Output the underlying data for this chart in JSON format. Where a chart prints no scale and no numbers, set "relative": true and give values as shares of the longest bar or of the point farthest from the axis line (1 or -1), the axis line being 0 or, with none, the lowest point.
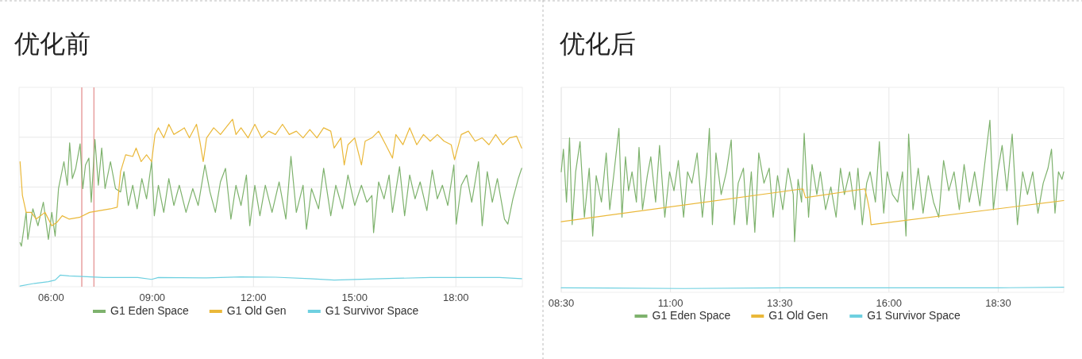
{
  "chart_data": [
    {
      "type": "line",
      "title": "优化前",
      "relative": true,
      "xlim": [
        5.05,
        19.97
      ],
      "xticks": [
        {
          "value": 6,
          "label": "06:00"
        },
        {
          "value": 9,
          "label": "09:00"
        },
        {
          "value": 12,
          "label": "12:00"
        },
        {
          "value": 15,
          "label": "15:00"
        },
        {
          "value": 18,
          "label": "18:00"
        }
      ],
      "grid": true,
      "legend": "bottom",
      "ref_lines": [
        {
          "axis": "x",
          "value": 6.91,
          "color": "#e8a0a0"
        },
        {
          "axis": "x",
          "value": 7.27,
          "color": "#e8a0a0"
        }
      ],
      "series": [
        {
          "name": "G1 Eden Space",
          "color": "#7eb26d",
          "x": [
            5.08,
            5.12,
            5.26,
            5.31,
            5.46,
            5.61,
            5.77,
            5.92,
            6.02,
            6.12,
            6.22,
            6.38,
            6.48,
            6.55,
            6.63,
            6.73,
            6.86,
            6.94,
            7.02,
            7.12,
            7.19,
            7.3,
            7.4,
            7.5,
            7.6,
            7.76,
            7.91,
            8.06,
            8.16,
            8.29,
            8.42,
            8.55,
            8.69,
            8.83,
            8.98,
            9.06,
            9.18,
            9.34,
            9.49,
            9.64,
            9.8,
            10.0,
            10.2,
            10.36,
            10.56,
            10.71,
            10.87,
            11.02,
            11.17,
            11.33,
            11.48,
            11.63,
            11.79,
            11.89,
            12.04,
            12.19,
            12.35,
            12.55,
            12.76,
            12.96,
            13.11,
            13.27,
            13.47,
            13.57,
            13.72,
            13.93,
            14.08,
            14.29,
            14.44,
            14.64,
            14.8,
            15.0,
            15.2,
            15.36,
            15.51,
            15.56,
            15.71,
            15.87,
            16.02,
            16.12,
            16.33,
            16.48,
            16.63,
            16.79,
            16.94,
            17.14,
            17.3,
            17.45,
            17.6,
            17.76,
            17.94,
            18.01,
            18.16,
            18.32,
            18.47,
            18.67,
            18.78,
            18.93,
            19.08,
            19.23,
            19.44,
            19.54,
            19.69,
            19.85,
            19.95
          ],
          "values": [
            0.263,
            0.242,
            0.444,
            0.283,
            0.465,
            0.364,
            0.505,
            0.283,
            0.444,
            0.303,
            0.586,
            0.747,
            0.606,
            0.859,
            0.646,
            0.707,
            0.853,
            0.586,
            0.727,
            0.768,
            0.505,
            0.879,
            0.606,
            0.828,
            0.586,
            0.747,
            0.586,
            0.566,
            0.687,
            0.485,
            0.606,
            0.465,
            0.646,
            0.525,
            0.747,
            0.424,
            0.606,
            0.444,
            0.646,
            0.485,
            0.606,
            0.444,
            0.586,
            0.485,
            0.727,
            0.566,
            0.444,
            0.626,
            0.707,
            0.404,
            0.606,
            0.485,
            0.667,
            0.364,
            0.606,
            0.424,
            0.606,
            0.444,
            0.626,
            0.404,
            0.778,
            0.444,
            0.606,
            0.343,
            0.586,
            0.465,
            0.707,
            0.424,
            0.606,
            0.465,
            0.667,
            0.485,
            0.606,
            0.505,
            0.545,
            0.323,
            0.626,
            0.525,
            0.667,
            0.444,
            0.717,
            0.424,
            0.667,
            0.525,
            0.626,
            0.455,
            0.697,
            0.525,
            0.606,
            0.485,
            0.727,
            0.374,
            0.606,
            0.667,
            0.505,
            0.747,
            0.364,
            0.687,
            0.505,
            0.646,
            0.404,
            0.374,
            0.525,
            0.646,
            0.707
          ]
        },
        {
          "name": "G1 Old Gen",
          "color": "#eab839",
          "x": [
            5.08,
            5.15,
            5.26,
            5.41,
            5.56,
            5.82,
            6.02,
            6.17,
            6.33,
            6.53,
            6.84,
            7.14,
            7.45,
            7.76,
            7.96,
            8.06,
            8.21,
            8.42,
            8.52,
            8.67,
            8.83,
            8.98,
            9.08,
            9.18,
            9.34,
            9.49,
            9.64,
            9.8,
            9.95,
            10.1,
            10.31,
            10.41,
            10.51,
            10.61,
            10.82,
            11.02,
            11.22,
            11.38,
            11.48,
            11.63,
            11.84,
            12.04,
            12.24,
            12.45,
            12.65,
            12.86,
            13.06,
            13.27,
            13.47,
            13.67,
            13.88,
            14.08,
            14.29,
            14.39,
            14.59,
            14.69,
            14.8,
            15.0,
            15.2,
            15.31,
            15.51,
            15.71,
            15.92,
            16.12,
            16.22,
            16.43,
            16.63,
            16.84,
            17.04,
            17.24,
            17.45,
            17.65,
            17.86,
            17.96,
            18.16,
            18.37,
            18.57,
            18.78,
            18.98,
            19.18,
            19.39,
            19.59,
            19.8,
            19.95
          ],
          "values": [
            0.747,
            0.545,
            0.444,
            0.444,
            0.404,
            0.444,
            0.364,
            0.384,
            0.424,
            0.404,
            0.414,
            0.444,
            0.455,
            0.465,
            0.475,
            0.687,
            0.788,
            0.778,
            0.828,
            0.747,
            0.788,
            0.747,
            0.909,
            0.949,
            0.889,
            0.97,
            0.909,
            0.929,
            0.949,
            0.889,
            0.97,
            0.869,
            0.747,
            0.889,
            0.949,
            0.909,
            0.96,
            1.0,
            0.909,
            0.949,
            0.889,
            0.97,
            0.889,
            0.929,
            0.909,
            0.97,
            0.909,
            0.929,
            0.889,
            0.939,
            0.889,
            0.949,
            0.929,
            0.828,
            0.889,
            0.727,
            0.848,
            0.889,
            0.727,
            0.869,
            0.889,
            0.929,
            0.848,
            0.768,
            0.909,
            0.848,
            0.949,
            0.848,
            0.909,
            0.869,
            0.909,
            0.869,
            0.848,
            0.758,
            0.909,
            0.929,
            0.869,
            0.889,
            0.848,
            0.909,
            0.848,
            0.889,
            0.899,
            0.828
          ]
        },
        {
          "name": "G1 Survivor Space",
          "color": "#6ed0e0",
          "x": [
            5.08,
            5.51,
            5.92,
            6.12,
            6.27,
            6.53,
            6.94,
            7.55,
            8.57,
            8.98,
            9.18,
            10.61,
            11.63,
            12.65,
            13.67,
            14.39,
            15.2,
            16.22,
            17.24,
            18.27,
            19.29,
            19.95
          ],
          "values": [
            0.004,
            0.02,
            0.03,
            0.04,
            0.069,
            0.065,
            0.061,
            0.055,
            0.055,
            0.044,
            0.055,
            0.053,
            0.059,
            0.057,
            0.048,
            0.04,
            0.044,
            0.05,
            0.055,
            0.055,
            0.055,
            0.048
          ]
        }
      ]
    },
    {
      "type": "line",
      "title": "优化后",
      "relative": true,
      "xlim": [
        8.5,
        20.0
      ],
      "xticks": [
        {
          "value": 8.5,
          "label": "08:30"
        },
        {
          "value": 11,
          "label": "11:00"
        },
        {
          "value": 13.5,
          "label": "13:30"
        },
        {
          "value": 16,
          "label": "16:00"
        },
        {
          "value": 18.5,
          "label": "18:30"
        }
      ],
      "grid": true,
      "legend": "bottom",
      "series": [
        {
          "name": "G1 Eden Space",
          "color": "#7eb26d",
          "x": [
            8.5,
            8.55,
            8.62,
            8.69,
            8.75,
            8.83,
            8.93,
            9.03,
            9.14,
            9.22,
            9.3,
            9.42,
            9.53,
            9.61,
            9.71,
            9.82,
            9.89,
            9.97,
            10.04,
            10.12,
            10.22,
            10.28,
            10.36,
            10.47,
            10.55,
            10.66,
            10.75,
            10.87,
            10.98,
            11.08,
            11.18,
            11.3,
            11.39,
            11.49,
            11.61,
            11.73,
            11.83,
            11.89,
            11.96,
            12.04,
            12.16,
            12.28,
            12.39,
            12.46,
            12.55,
            12.67,
            12.75,
            12.85,
            12.93,
            13.02,
            13.14,
            13.26,
            13.35,
            13.45,
            13.57,
            13.69,
            13.81,
            13.84,
            13.92,
            14.0,
            14.06,
            14.16,
            14.24,
            14.35,
            14.43,
            14.55,
            14.67,
            14.79,
            14.89,
            14.98,
            15.1,
            15.22,
            15.29,
            15.39,
            15.49,
            15.57,
            15.69,
            15.78,
            15.88,
            15.96,
            16.08,
            16.2,
            16.31,
            16.39,
            16.45,
            16.55,
            16.67,
            16.78,
            16.9,
            17.02,
            17.14,
            17.25,
            17.37,
            17.49,
            17.61,
            17.72,
            17.84,
            17.96,
            18.08,
            18.19,
            18.31,
            18.39,
            18.49,
            18.59,
            18.7,
            18.82,
            18.94,
            19.06,
            19.17,
            19.29,
            19.41,
            19.53,
            19.64,
            19.72,
            19.8,
            19.88,
            19.96,
            20.0
          ],
          "values": [
            0.7,
            0.831,
            0.524,
            0.897,
            0.393,
            0.7,
            0.875,
            0.436,
            0.721,
            0.327,
            0.678,
            0.524,
            0.809,
            0.48,
            0.7,
            0.952,
            0.436,
            0.787,
            0.59,
            0.7,
            0.524,
            0.842,
            0.48,
            0.678,
            0.787,
            0.524,
            0.853,
            0.436,
            0.7,
            0.59,
            0.765,
            0.436,
            0.7,
            0.634,
            0.809,
            0.436,
            0.7,
            0.952,
            0.393,
            0.809,
            0.568,
            0.7,
            0.886,
            0.393,
            0.634,
            0.721,
            0.393,
            0.7,
            0.349,
            0.809,
            0.634,
            0.721,
            0.436,
            0.678,
            0.48,
            0.721,
            0.568,
            0.294,
            0.656,
            0.524,
            0.923,
            0.436,
            0.743,
            0.568,
            0.7,
            0.48,
            0.612,
            0.436,
            0.721,
            0.568,
            0.7,
            0.48,
            0.721,
            0.393,
            0.634,
            0.7,
            0.524,
            0.875,
            0.46,
            0.7,
            0.568,
            0.524,
            0.7,
            0.327,
            0.919,
            0.48,
            0.721,
            0.46,
            0.678,
            0.524,
            0.436,
            0.765,
            0.59,
            0.7,
            0.48,
            0.743,
            0.524,
            0.7,
            0.502,
            0.743,
            1.0,
            0.48,
            0.7,
            0.853,
            0.59,
            0.919,
            0.393,
            0.7,
            0.568,
            0.7,
            0.46,
            0.634,
            0.721,
            0.831,
            0.46,
            0.7,
            0.656,
            0.7
          ]
        },
        {
          "name": "G1 Old Gen",
          "color": "#eab839",
          "x": [
            8.5,
            14.03,
            14.09,
            15.45,
            15.51,
            15.56,
            15.59,
            20.0
          ],
          "values": [
            0.41,
            0.601,
            0.55,
            0.601,
            0.535,
            0.469,
            0.393,
            0.533
          ]
        },
        {
          "name": "G1 Survivor Space",
          "color": "#6ed0e0",
          "x": [
            8.5,
            11.3,
            13.65,
            16.0,
            18.5,
            20.0
          ],
          "values": [
            0.026,
            0.022,
            0.026,
            0.026,
            0.026,
            0.029
          ]
        }
      ]
    }
  ]
}
